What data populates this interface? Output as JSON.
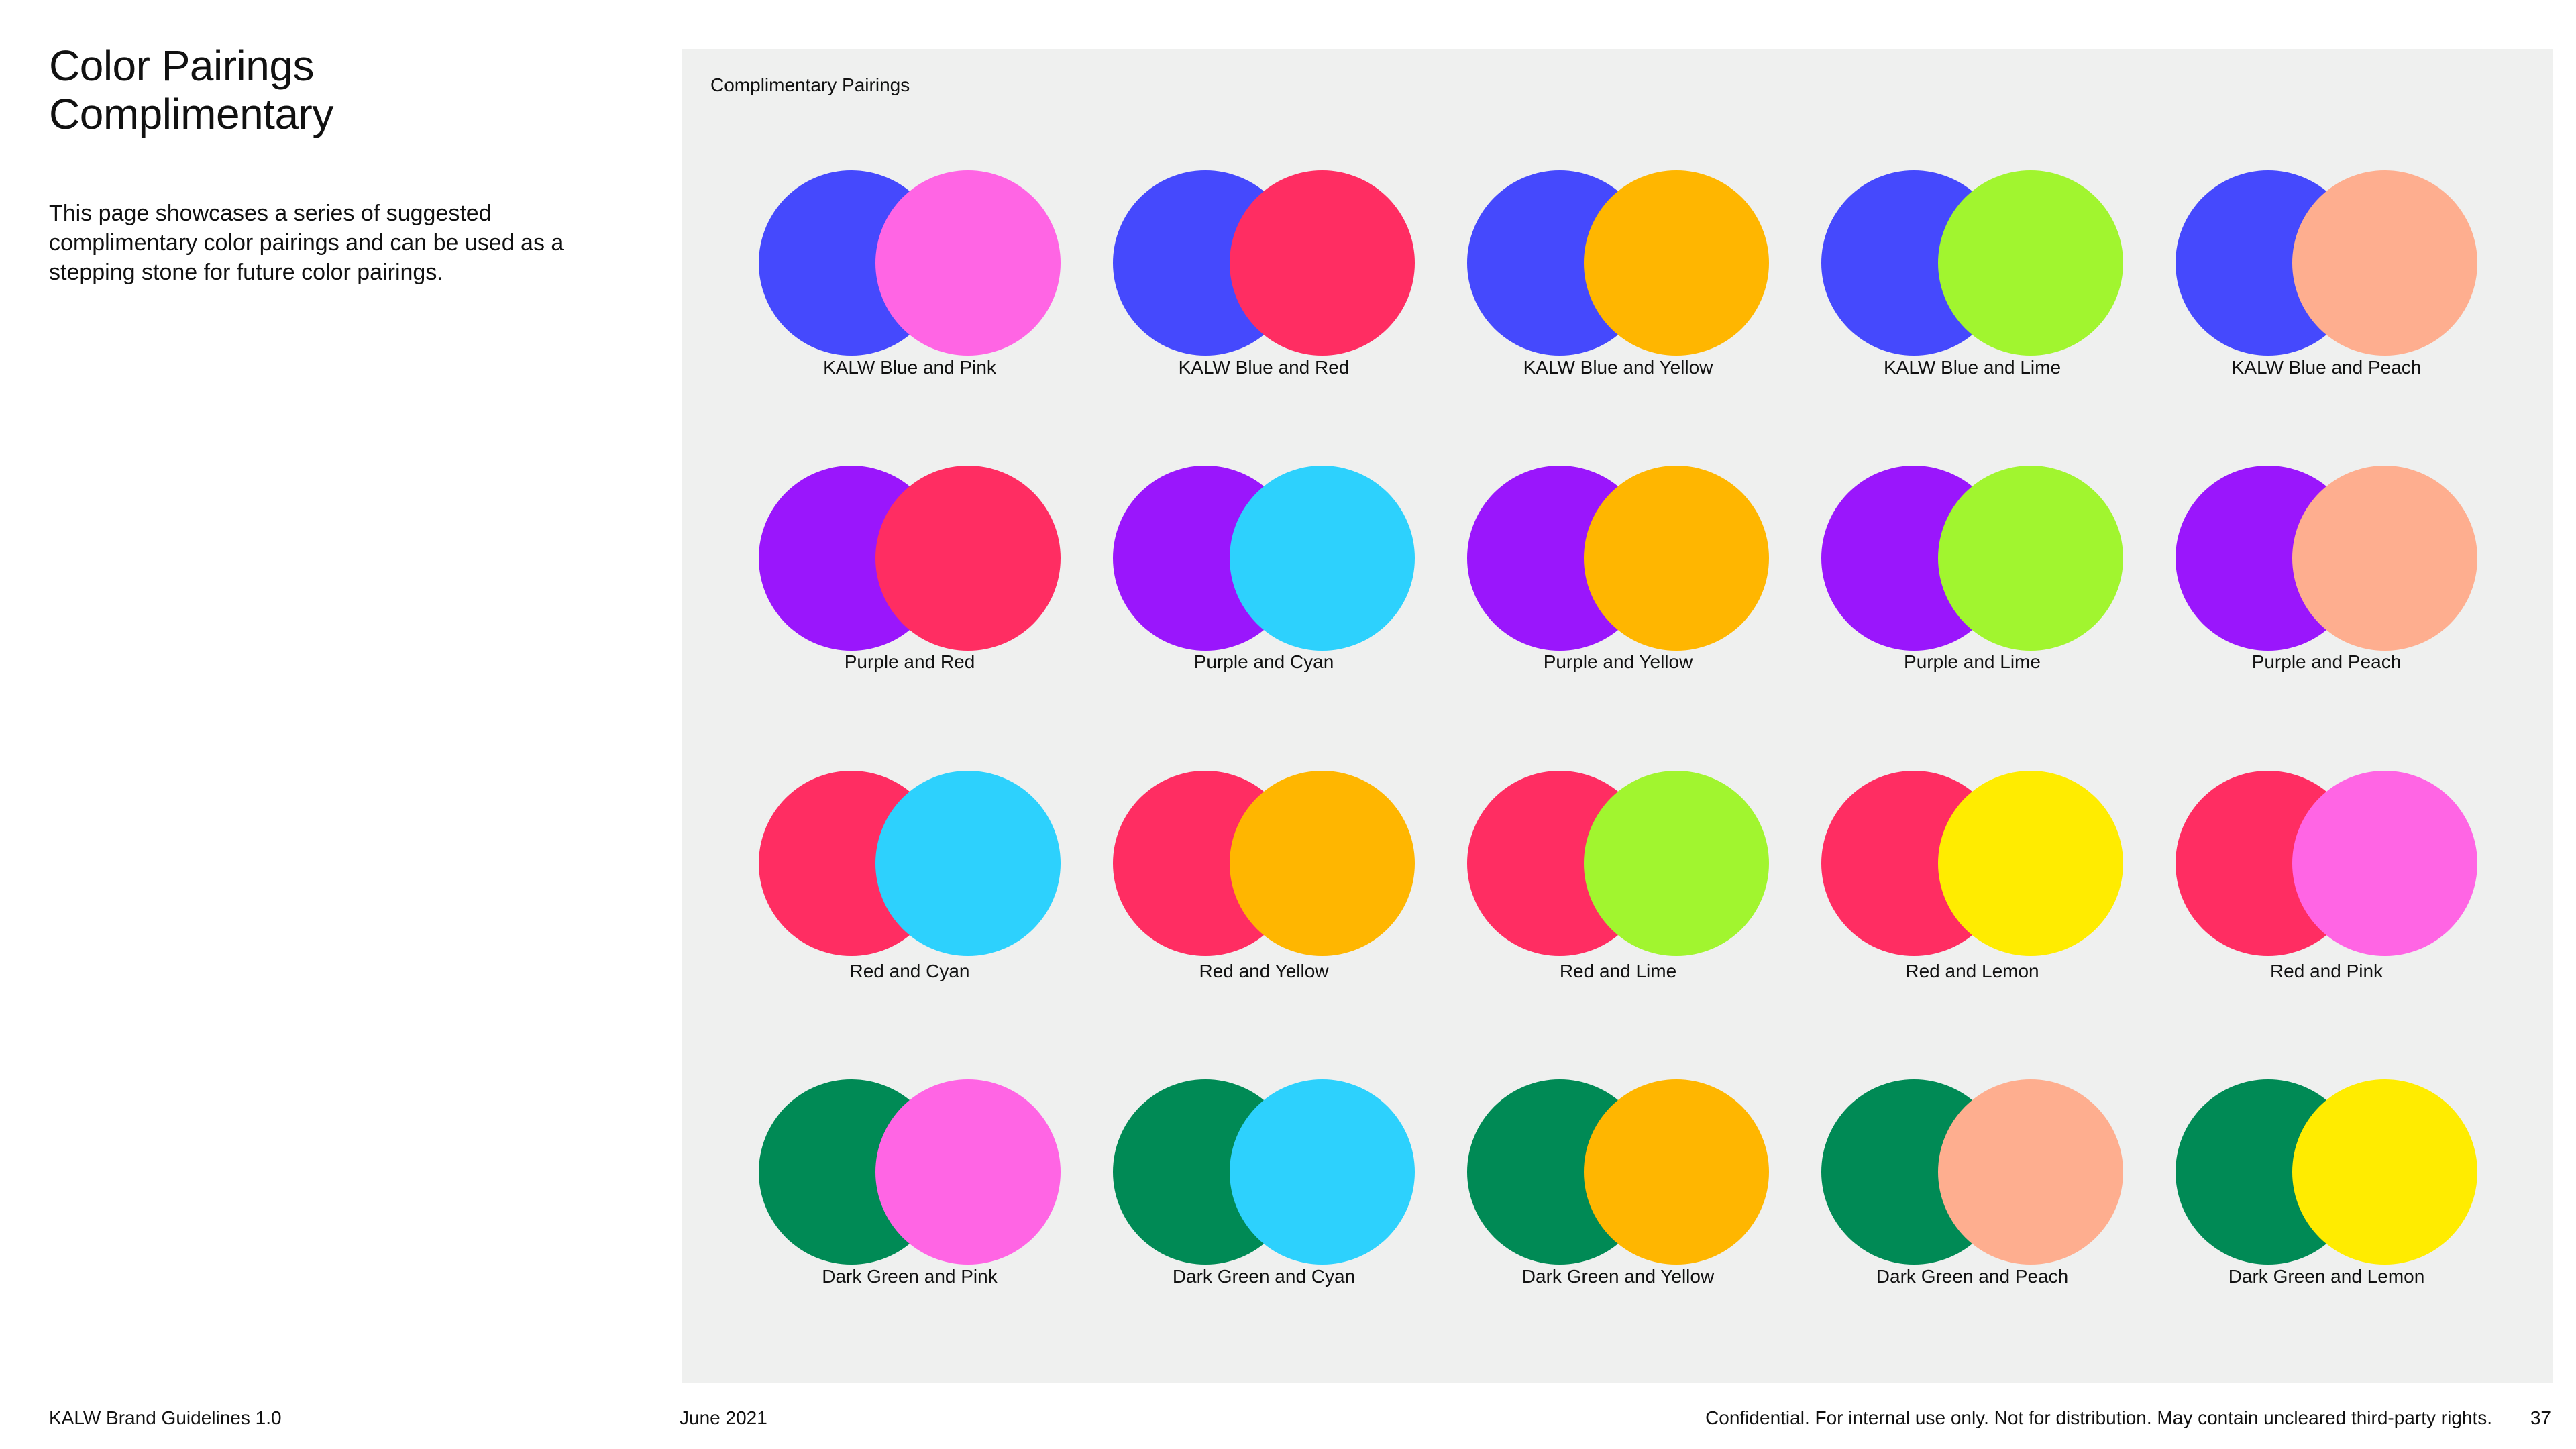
{
  "header": {
    "title_line1": "Color Pairings",
    "title_line2": "Complimentary",
    "intro": "This page showcases a series of suggested complimentary color pairings and can be used as a stepping stone for future color pairings."
  },
  "panel": {
    "title": "Complimentary Pairings"
  },
  "palette": {
    "kalw_blue": "#4549fd",
    "purple": "#9a16fc",
    "red": "#ff2d62",
    "dark_green": "#008a55",
    "pink": "#ff65e4",
    "yellow": "#ffb600",
    "lime": "#a1f52f",
    "peach": "#feae8f",
    "cyan": "#2dd1fd",
    "lemon": "#ffec00"
  },
  "pairings": [
    [
      {
        "label": "KALW Blue and Pink",
        "back": "#4549fd",
        "front": "#ff65e4"
      },
      {
        "label": "KALW Blue and Red",
        "back": "#4549fd",
        "front": "#ff2d62"
      },
      {
        "label": "KALW Blue and Yellow",
        "back": "#4549fd",
        "front": "#ffb600"
      },
      {
        "label": "KALW Blue and Lime",
        "back": "#4549fd",
        "front": "#a1f52f"
      },
      {
        "label": "KALW Blue and Peach",
        "back": "#4549fd",
        "front": "#feae8f"
      }
    ],
    [
      {
        "label": "Purple and Red",
        "back": "#9a16fc",
        "front": "#ff2d62"
      },
      {
        "label": "Purple and Cyan",
        "back": "#9a16fc",
        "front": "#2dd1fd"
      },
      {
        "label": "Purple and Yellow",
        "back": "#9a16fc",
        "front": "#ffb600"
      },
      {
        "label": "Purple and Lime",
        "back": "#9a16fc",
        "front": "#a1f52f"
      },
      {
        "label": "Purple and Peach",
        "back": "#9a16fc",
        "front": "#feae8f"
      }
    ],
    [
      {
        "label": "Red and Cyan",
        "back": "#ff2d62",
        "front": "#2dd1fd"
      },
      {
        "label": "Red and Yellow",
        "back": "#ff2d62",
        "front": "#ffb600"
      },
      {
        "label": "Red and Lime",
        "back": "#ff2d62",
        "front": "#a1f52f"
      },
      {
        "label": "Red and Lemon",
        "back": "#ff2d62",
        "front": "#ffec00"
      },
      {
        "label": "Red and Pink",
        "back": "#ff2d62",
        "front": "#ff65e4"
      }
    ],
    [
      {
        "label": "Dark Green and Pink",
        "back": "#008a55",
        "front": "#ff65e4"
      },
      {
        "label": "Dark Green and Cyan",
        "back": "#008a55",
        "front": "#2dd1fd"
      },
      {
        "label": "Dark Green and Yellow",
        "back": "#008a55",
        "front": "#ffb600"
      },
      {
        "label": "Dark Green and Peach",
        "back": "#008a55",
        "front": "#feae8f"
      },
      {
        "label": "Dark Green and Lemon",
        "back": "#008a55",
        "front": "#ffec00"
      }
    ]
  ],
  "footer": {
    "doc_name": "KALW Brand Guidelines 1.0",
    "date": "June 2021",
    "legal": "Confidential. For internal use only. Not for distribution. May contain uncleared third-party rights.",
    "page_number": "37"
  }
}
